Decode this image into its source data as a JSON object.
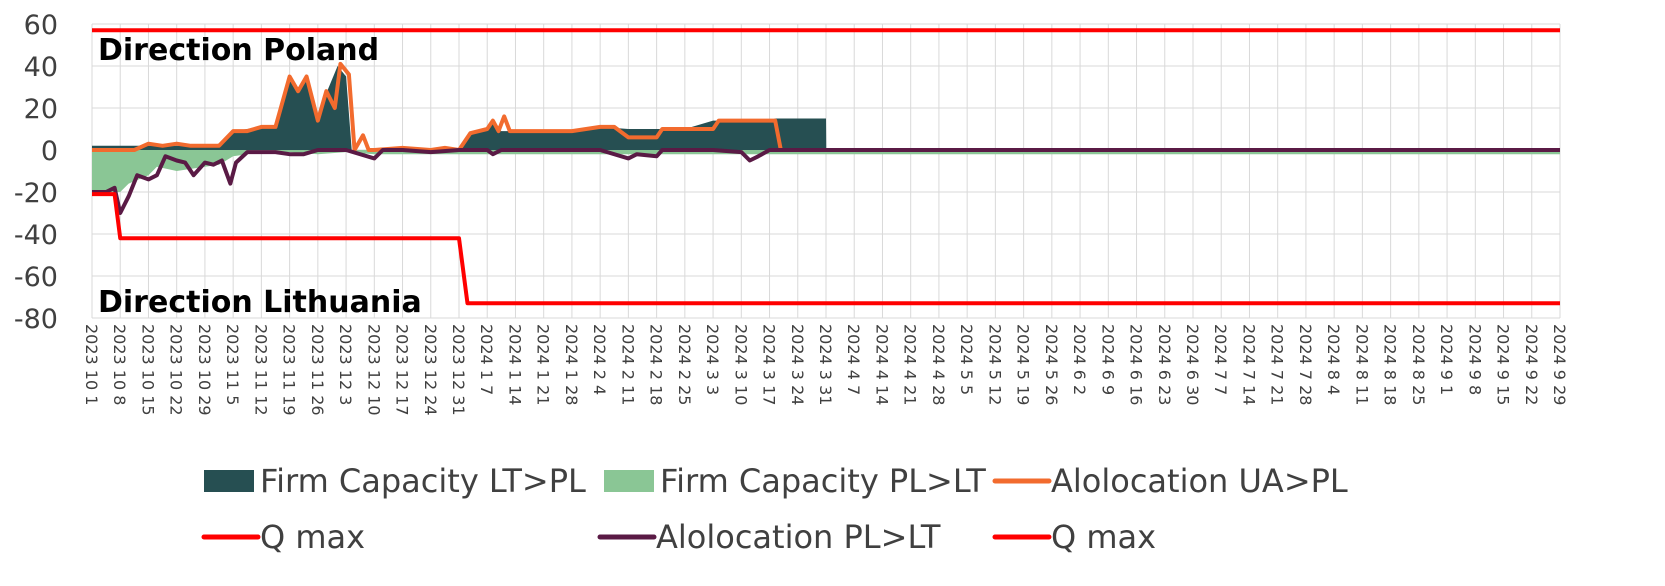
{
  "chart_data": {
    "type": "area",
    "title": "",
    "ylim": [
      -80,
      60
    ],
    "yticks": [
      60,
      40,
      20,
      0,
      -20,
      -40,
      -60,
      -80
    ],
    "grid": true,
    "legend_position": "bottom",
    "annotations": [
      "Direction Poland",
      "Direction Lithuania"
    ],
    "x_categories": [
      "2023 10 1",
      "2023 10 8",
      "2023 10 15",
      "2023 10 22",
      "2023 10 29",
      "2023 11 5",
      "2023 11 12",
      "2023 11 19",
      "2023 11 26",
      "2023 12 3",
      "2023 12 10",
      "2023 12 17",
      "2023 12 24",
      "2023 12 31",
      "2024 1 7",
      "2024 1 14",
      "2024 1 21",
      "2024 1 28",
      "2024 2 4",
      "2024 2 11",
      "2024 2 18",
      "2024 2 25",
      "2024 3 3",
      "2024 3 10",
      "2024 3 17",
      "2024 3 24",
      "2024 3 31",
      "2024 4 7",
      "2024 4 14",
      "2024 4 21",
      "2024 4 28",
      "2024 5 5",
      "2024 5 12",
      "2024 5 19",
      "2024 5 26",
      "2024 6 2",
      "2024 6 9",
      "2024 6 16",
      "2024 6 23",
      "2024 6 30",
      "2024 7 7",
      "2024 7 14",
      "2024 7 21",
      "2024 7 28",
      "2024 8 4",
      "2024 8 11",
      "2024 8 18",
      "2024 8 25",
      "2024 9 1",
      "2024 9 8",
      "2024 9 15",
      "2024 9 22",
      "2024 9 29"
    ],
    "series": [
      {
        "name": "Firm Capacity LT>PL",
        "kind": "area",
        "color": "#264f52",
        "points": [
          [
            0,
            2
          ],
          [
            1,
            2
          ],
          [
            2,
            2
          ],
          [
            3,
            2
          ],
          [
            4,
            2
          ],
          [
            4.5,
            3
          ],
          [
            5,
            9
          ],
          [
            5.5,
            10
          ],
          [
            6,
            11
          ],
          [
            6.5,
            11
          ],
          [
            7,
            34
          ],
          [
            7.3,
            27
          ],
          [
            7.6,
            33
          ],
          [
            8,
            16
          ],
          [
            8.3,
            27
          ],
          [
            8.7,
            40
          ],
          [
            9,
            35
          ],
          [
            9.2,
            0
          ],
          [
            10,
            0
          ],
          [
            13,
            0
          ],
          [
            13.4,
            7
          ],
          [
            14,
            10
          ],
          [
            14.2,
            13
          ],
          [
            14.5,
            9
          ],
          [
            15,
            9
          ],
          [
            16,
            9
          ],
          [
            17,
            9
          ],
          [
            18,
            11
          ],
          [
            19,
            10
          ],
          [
            20,
            10
          ],
          [
            21,
            10
          ],
          [
            22,
            14
          ],
          [
            23,
            14
          ],
          [
            24,
            14
          ],
          [
            24.2,
            15
          ],
          [
            26,
            15
          ],
          [
            26.01,
            0
          ],
          [
            52,
            0
          ]
        ]
      },
      {
        "name": "Firm Capacity PL>LT",
        "kind": "area",
        "color": "#8ac695",
        "points": [
          [
            0,
            -20
          ],
          [
            1,
            -20
          ],
          [
            1.3,
            -16
          ],
          [
            2,
            -12
          ],
          [
            2.3,
            -8
          ],
          [
            3,
            -10
          ],
          [
            4,
            -8
          ],
          [
            4.5,
            -7
          ],
          [
            5,
            -3
          ],
          [
            5.5,
            -2
          ],
          [
            6,
            -1
          ],
          [
            7,
            -1
          ],
          [
            8,
            -2
          ],
          [
            9,
            -1
          ],
          [
            10,
            -2
          ],
          [
            11,
            -2
          ],
          [
            12,
            -2
          ],
          [
            13,
            -2
          ],
          [
            14,
            -2
          ],
          [
            52,
            -2
          ]
        ]
      },
      {
        "name": "Alolocation  UA>PL",
        "kind": "line",
        "color": "#f26b2e",
        "points": [
          [
            0,
            0
          ],
          [
            1,
            0
          ],
          [
            1.5,
            0
          ],
          [
            2,
            3
          ],
          [
            2.5,
            2
          ],
          [
            3,
            3
          ],
          [
            3.5,
            2
          ],
          [
            4,
            2
          ],
          [
            4.5,
            2
          ],
          [
            5,
            9
          ],
          [
            5.5,
            9
          ],
          [
            6,
            11
          ],
          [
            6.5,
            11
          ],
          [
            7,
            35
          ],
          [
            7.3,
            28
          ],
          [
            7.6,
            35
          ],
          [
            8,
            14
          ],
          [
            8.3,
            28
          ],
          [
            8.6,
            20
          ],
          [
            8.8,
            41
          ],
          [
            9.1,
            36
          ],
          [
            9.3,
            0
          ],
          [
            9.6,
            7
          ],
          [
            9.8,
            0
          ],
          [
            10,
            0
          ],
          [
            11,
            1
          ],
          [
            12,
            0
          ],
          [
            12.5,
            1
          ],
          [
            13,
            0
          ],
          [
            13.4,
            8
          ],
          [
            14,
            10
          ],
          [
            14.2,
            14
          ],
          [
            14.4,
            9
          ],
          [
            14.6,
            16
          ],
          [
            14.8,
            9
          ],
          [
            15,
            9
          ],
          [
            16,
            9
          ],
          [
            17,
            9
          ],
          [
            18,
            11
          ],
          [
            18.5,
            11
          ],
          [
            19,
            6
          ],
          [
            20,
            6
          ],
          [
            20.2,
            10
          ],
          [
            21,
            10
          ],
          [
            22,
            10
          ],
          [
            22.2,
            14
          ],
          [
            23,
            14
          ],
          [
            24,
            14
          ],
          [
            24.2,
            14
          ],
          [
            24.4,
            0
          ],
          [
            52,
            0
          ]
        ]
      },
      {
        "name": "Q max",
        "kind": "line",
        "color": "#ff0000",
        "points": [
          [
            0,
            57
          ],
          [
            52,
            57
          ]
        ]
      },
      {
        "name": "Alolocation  PL>LT",
        "kind": "line",
        "color": "#5a1a45",
        "points": [
          [
            0,
            -20
          ],
          [
            0.5,
            -20
          ],
          [
            0.8,
            -18
          ],
          [
            1,
            -30
          ],
          [
            1.3,
            -22
          ],
          [
            1.6,
            -12
          ],
          [
            2,
            -14
          ],
          [
            2.3,
            -12
          ],
          [
            2.6,
            -3
          ],
          [
            3,
            -5
          ],
          [
            3.3,
            -6
          ],
          [
            3.6,
            -12
          ],
          [
            4,
            -6
          ],
          [
            4.3,
            -7
          ],
          [
            4.6,
            -5
          ],
          [
            4.9,
            -16
          ],
          [
            5.1,
            -6
          ],
          [
            5.5,
            -1
          ],
          [
            6,
            -1
          ],
          [
            6.5,
            -1
          ],
          [
            7,
            -2
          ],
          [
            7.5,
            -2
          ],
          [
            8,
            0
          ],
          [
            9,
            0
          ],
          [
            10,
            -4
          ],
          [
            10.3,
            0
          ],
          [
            11,
            0
          ],
          [
            12,
            -1
          ],
          [
            13,
            0
          ],
          [
            14,
            0
          ],
          [
            14.2,
            -2
          ],
          [
            14.5,
            0
          ],
          [
            16,
            0
          ],
          [
            18,
            0
          ],
          [
            19,
            -4
          ],
          [
            19.3,
            -2
          ],
          [
            20,
            -3
          ],
          [
            20.2,
            0
          ],
          [
            22,
            0
          ],
          [
            23,
            -1
          ],
          [
            23.3,
            -5
          ],
          [
            23.6,
            -3
          ],
          [
            24,
            0
          ],
          [
            52,
            0
          ]
        ]
      },
      {
        "name": "Q max",
        "kind": "line",
        "color": "#ff0000",
        "points": [
          [
            0,
            -21
          ],
          [
            0.8,
            -21
          ],
          [
            1,
            -42
          ],
          [
            13,
            -42
          ],
          [
            13.3,
            -73
          ],
          [
            52,
            -73
          ]
        ]
      }
    ]
  }
}
